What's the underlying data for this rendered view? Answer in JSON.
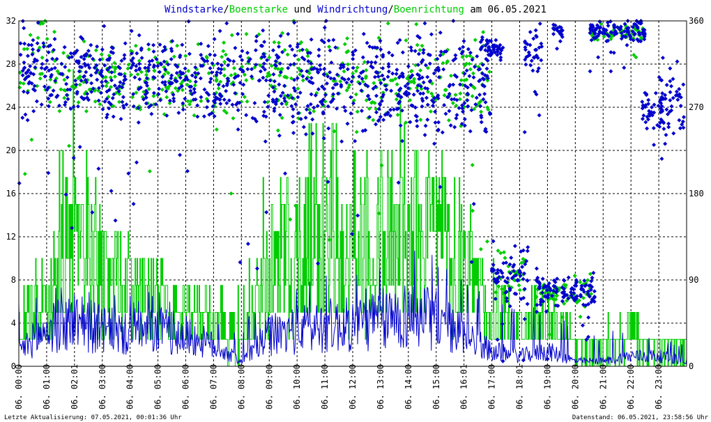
{
  "chart_data": {
    "type": "line",
    "title": {
      "parts": [
        {
          "text": "Windstarke",
          "color": "#0000cc"
        },
        {
          "text": "/",
          "color": "#000000"
        },
        {
          "text": "Boenstarke",
          "color": "#00cc00"
        },
        {
          "text": " und ",
          "color": "#000000"
        },
        {
          "text": "Windrichtung",
          "color": "#0000cc"
        },
        {
          "text": "/",
          "color": "#000000"
        },
        {
          "text": "Boenrichtung",
          "color": "#00cc00"
        },
        {
          "text": " am 06.05.2021",
          "color": "#000000"
        }
      ]
    },
    "x_ticks": [
      "06. 00:00",
      "06. 01:00",
      "06. 02:01",
      "06. 03:00",
      "06. 04:00",
      "06. 05:00",
      "06. 06:00",
      "06. 07:00",
      "06. 08:00",
      "06. 09:00",
      "06. 10:00",
      "06. 11:00",
      "06. 12:00",
      "06. 13:00",
      "06. 14:00",
      "06. 15:00",
      "06. 16:01",
      "06. 17:00",
      "06. 18:01",
      "06. 19:00",
      "06. 20:00",
      "06. 21:00",
      "06. 22:00",
      "06. 23:00"
    ],
    "y_left": {
      "min": 0,
      "max": 32,
      "ticks": [
        0,
        4,
        8,
        12,
        16,
        20,
        24,
        28,
        32
      ]
    },
    "y_right": {
      "min": 0,
      "max": 360,
      "ticks": [
        0,
        90,
        180,
        270,
        360
      ]
    },
    "x_range_hours": [
      0,
      24
    ],
    "grid": true,
    "colors": {
      "wind": "#0000cc",
      "gust": "#00cc00",
      "grid": "#000000",
      "frame": "#000000"
    },
    "series": [
      {
        "key": "windspeed",
        "color": "#0000cc",
        "axis": "left",
        "style": "line",
        "hourly_level": [
          1.5,
          3.5,
          4.5,
          3.5,
          3,
          3.5,
          3,
          2,
          0.5,
          3,
          3.5,
          4,
          4,
          4.5,
          5,
          4.5,
          3,
          1.5,
          1,
          1.5,
          0.5,
          0.5,
          1,
          1,
          0.5
        ],
        "hourly_peak": [
          6,
          8,
          9,
          7,
          7,
          7,
          6,
          5,
          3,
          9,
          9,
          10,
          9,
          10,
          14,
          11,
          9,
          6,
          6,
          6,
          4,
          3,
          4,
          3,
          2
        ]
      },
      {
        "key": "gust",
        "color": "#00cc00",
        "axis": "left",
        "style": "line",
        "hourly_level": [
          4,
          7,
          12,
          9,
          7,
          7,
          5,
          4,
          2,
          10,
          11,
          12,
          11,
          12,
          14,
          12,
          10,
          5,
          4,
          5,
          2,
          2,
          3,
          2,
          2
        ],
        "hourly_peak": [
          8,
          15,
          30,
          15,
          13,
          10,
          8,
          8,
          8,
          20,
          22,
          26,
          20,
          22,
          25,
          22,
          15,
          10,
          8,
          8,
          4,
          4,
          5,
          4,
          6
        ]
      },
      {
        "key": "winddirection",
        "color": "#0000cc",
        "axis": "right",
        "style": "points",
        "clusters": [
          {
            "from": 0.0,
            "to": 1.0,
            "center": 310,
            "spread": 40
          },
          {
            "from": 1.0,
            "to": 7.0,
            "center": 300,
            "spread": 35
          },
          {
            "from": 7.0,
            "to": 17.0,
            "center": 295,
            "spread": 45
          },
          {
            "from": 16.6,
            "to": 17.4,
            "center": 330,
            "spread": 12
          },
          {
            "from": 17.0,
            "to": 18.3,
            "center": 95,
            "spread": 22
          },
          {
            "from": 18.1,
            "to": 18.8,
            "center": 330,
            "spread": 20
          },
          {
            "from": 18.6,
            "to": 19.4,
            "center": 75,
            "spread": 20
          },
          {
            "from": 19.2,
            "to": 19.6,
            "center": 350,
            "spread": 5
          },
          {
            "from": 19.5,
            "to": 20.7,
            "center": 80,
            "spread": 12
          },
          {
            "from": 20.5,
            "to": 22.5,
            "center": 350,
            "spread": 10
          },
          {
            "from": 22.4,
            "to": 23.2,
            "center": 265,
            "spread": 15
          },
          {
            "from": 23.0,
            "to": 23.9,
            "center": 275,
            "spread": 35
          }
        ]
      },
      {
        "key": "gustdirection",
        "color": "#00cc00",
        "axis": "right",
        "style": "points",
        "clusters": [
          {
            "from": 0.0,
            "to": 1.0,
            "center": 320,
            "spread": 35
          },
          {
            "from": 1.0,
            "to": 7.0,
            "center": 300,
            "spread": 30
          },
          {
            "from": 7.0,
            "to": 17.0,
            "center": 300,
            "spread": 40
          },
          {
            "from": 17.0,
            "to": 18.3,
            "center": 95,
            "spread": 18
          },
          {
            "from": 18.6,
            "to": 20.7,
            "center": 78,
            "spread": 12
          },
          {
            "from": 20.5,
            "to": 22.5,
            "center": 348,
            "spread": 8
          }
        ]
      }
    ]
  },
  "footer": {
    "left": "Letzte Aktualisierung: 07.05.2021, 00:01:36 Uhr",
    "right": "Datenstand: 06.05.2021, 23:58:56 Uhr"
  }
}
